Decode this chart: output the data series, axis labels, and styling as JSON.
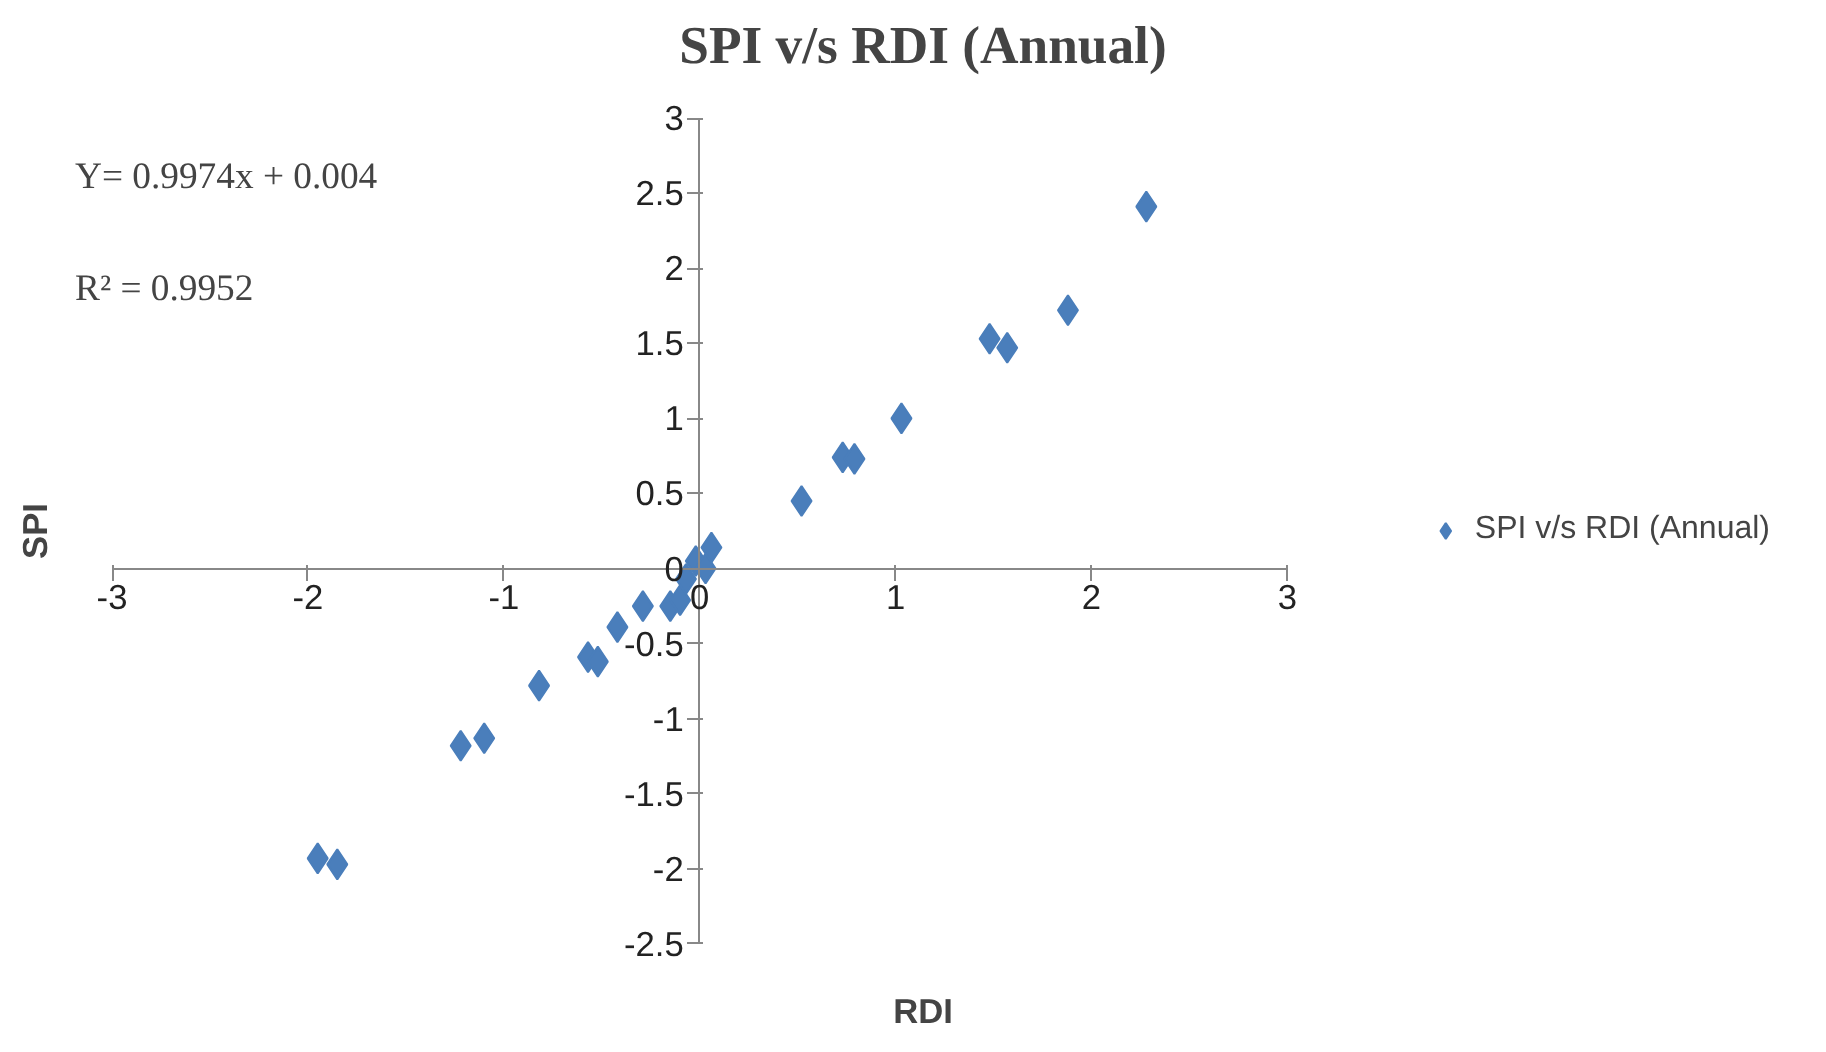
{
  "chart_data": {
    "type": "scatter",
    "title": "SPI v/s RDI (Annual)",
    "xlabel": "RDI",
    "ylabel": "SPI",
    "annotations": [
      "Y= 0.9974x + 0.004",
      "R² = 0.9952"
    ],
    "series": [
      {
        "name": "SPI v/s RDI (Annual)",
        "color": "#4a7ebb",
        "x": [
          -1.95,
          -1.85,
          -1.22,
          -1.1,
          -0.82,
          -0.57,
          -0.52,
          -0.42,
          -0.29,
          -0.15,
          -0.1,
          -0.07,
          -0.02,
          0.03,
          0.06,
          0.52,
          0.73,
          0.79,
          1.03,
          1.48,
          1.57,
          1.88,
          2.28
        ],
        "values": [
          -1.93,
          -1.97,
          -1.18,
          -1.13,
          -0.78,
          -0.59,
          -0.62,
          -0.39,
          -0.25,
          -0.25,
          -0.21,
          -0.07,
          0.05,
          0.0,
          0.14,
          0.45,
          0.74,
          0.73,
          1.0,
          1.53,
          1.47,
          1.72,
          2.41
        ]
      }
    ],
    "xlim": [
      -3,
      3
    ],
    "ylim": [
      -2.5,
      3
    ],
    "xticks": [
      -3,
      -2,
      -1,
      0,
      1,
      2,
      3
    ],
    "yticks": [
      -2.5,
      -2,
      -1.5,
      -1,
      -0.5,
      0,
      0.5,
      1,
      1.5,
      2,
      2.5,
      3
    ],
    "grid": false,
    "legend": "right",
    "marker": "diamond"
  }
}
